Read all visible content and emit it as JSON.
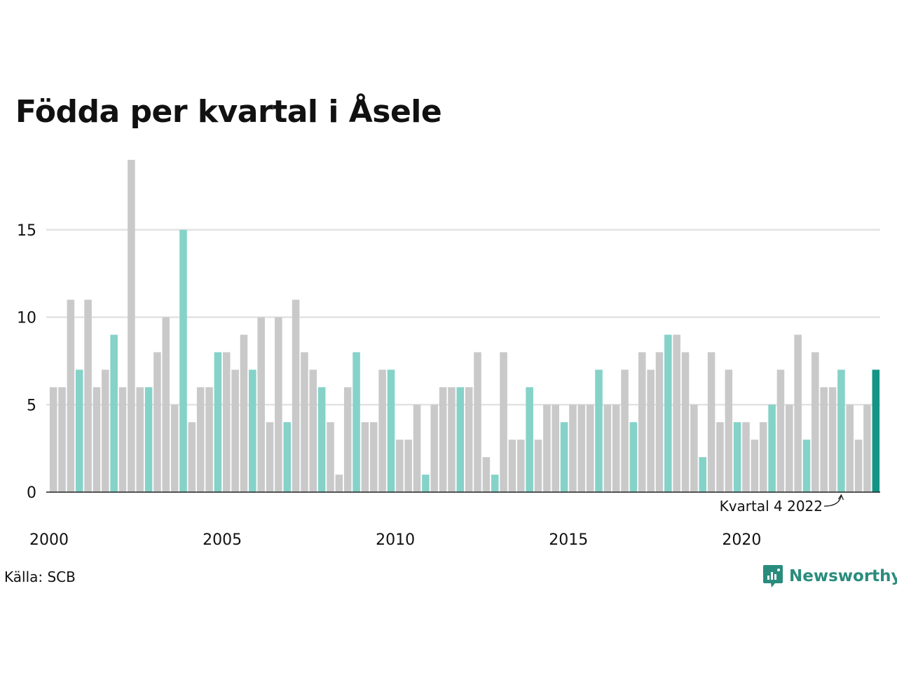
{
  "chart_data": {
    "type": "bar",
    "title": "Födda per kvartal i Åsele",
    "source": "Källa: SCB",
    "brand": "Newsworthy",
    "xlabel": "",
    "ylabel": "",
    "ylim": [
      0,
      19
    ],
    "yticks": [
      0,
      5,
      10,
      15
    ],
    "xtick_labels": [
      "2000",
      "2005",
      "2010",
      "2015",
      "2020"
    ],
    "grid": true,
    "annotation": {
      "text": "Kvartal 4 2022",
      "target_index": 91
    },
    "colors": {
      "other": "#c9c9c9",
      "q4": "#85d2c8",
      "latest": "#139485",
      "grid": "#e3e3e3",
      "axis": "#222222"
    },
    "quarters_per_year": 4,
    "start_year": 2000,
    "values": [
      6,
      6,
      11,
      7,
      11,
      6,
      7,
      9,
      6,
      19,
      6,
      6,
      8,
      10,
      5,
      15,
      4,
      6,
      6,
      8,
      8,
      7,
      9,
      7,
      10,
      4,
      10,
      4,
      11,
      8,
      7,
      6,
      4,
      1,
      6,
      8,
      4,
      4,
      7,
      7,
      3,
      3,
      5,
      1,
      5,
      6,
      6,
      6,
      6,
      8,
      2,
      1,
      8,
      3,
      3,
      6,
      3,
      5,
      5,
      4,
      5,
      5,
      5,
      7,
      5,
      5,
      7,
      4,
      8,
      7,
      8,
      9,
      9,
      8,
      5,
      2,
      8,
      4,
      7,
      4,
      4,
      3,
      4,
      5,
      7,
      5,
      9,
      3,
      8,
      6,
      6,
      7,
      5,
      3,
      5,
      7
    ]
  }
}
